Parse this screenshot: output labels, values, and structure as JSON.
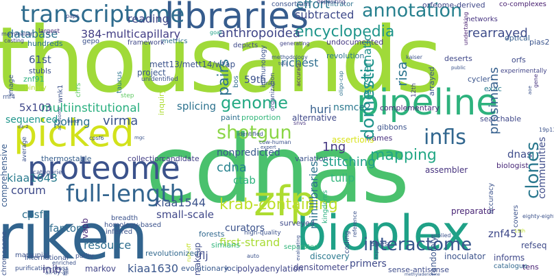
{
  "words": [
    {
      "text": "thousands",
      "color": "#a0da39"
    },
    {
      "text": "cdnas",
      "color": "#4ac16d"
    },
    {
      "text": "riken",
      "color": "#32648e"
    },
    {
      "text": "bioplex",
      "color": "#1fa187"
    },
    {
      "text": "libraries",
      "color": "#365c8d"
    },
    {
      "text": "pipeline",
      "color": "#2db27d"
    },
    {
      "text": "picked",
      "color": "#d2e21b"
    },
    {
      "text": "proteome",
      "color": "#3b528b"
    },
    {
      "text": "zfp",
      "color": "#addc30"
    },
    {
      "text": "transcriptome",
      "color": "#2f6c8e"
    },
    {
      "text": "full-length",
      "color": "#32648e"
    },
    {
      "text": "annotation",
      "color": "#27808e"
    },
    {
      "text": "genome",
      "color": "#23a983"
    },
    {
      "text": "shotgun",
      "color": "#8bd646"
    },
    {
      "text": "domestic",
      "color": "#1f948c"
    },
    {
      "text": "encyclopedia",
      "color": "#1f958b"
    },
    {
      "text": "clones",
      "color": "#2a788e"
    },
    {
      "text": "infls",
      "color": "#31668e"
    },
    {
      "text": "interactome",
      "color": "#39568c"
    },
    {
      "text": "krab-containing",
      "color": "#bddf26"
    },
    {
      "text": "384-multicapillary",
      "color": "#433e85"
    },
    {
      "text": "anthropoidea",
      "color": "#404688"
    },
    {
      "text": "pairs",
      "color": "#2c718e"
    },
    {
      "text": "subtracted",
      "color": "#3e4989"
    },
    {
      "text": "rearrayed",
      "color": "#3e4c8a"
    },
    {
      "text": "effort",
      "color": "#2a768e"
    },
    {
      "text": "database",
      "color": "#2c728e"
    },
    {
      "text": "reading",
      "color": "#3f4788"
    },
    {
      "text": "mapping",
      "color": "#22a785"
    },
    {
      "text": "prosimians",
      "color": "#355f8d"
    },
    {
      "text": "clustered",
      "color": "#1f9e89"
    },
    {
      "text": "stitching",
      "color": "#3dbc74"
    },
    {
      "text": "minilibraries",
      "color": "#2c738e"
    },
    {
      "text": "richest",
      "color": "#2e6e8e"
    },
    {
      "text": "risa",
      "color": "#2b758e"
    },
    {
      "text": "systematic",
      "color": "#21918c"
    },
    {
      "text": "multiinstitutional",
      "color": "#29af7f"
    },
    {
      "text": "5x103",
      "color": "#3f4889"
    },
    {
      "text": "61st",
      "color": "#3a548c"
    },
    {
      "text": "59th",
      "color": "#3b528b"
    },
    {
      "text": "polling",
      "color": "#2c718e"
    },
    {
      "text": "virma",
      "color": "#3a548c"
    },
    {
      "text": "huri",
      "color": "#355f8d"
    },
    {
      "text": "nsmce2",
      "color": "#2a788e"
    },
    {
      "text": "splicing",
      "color": "#2c728e"
    },
    {
      "text": "sequenced",
      "color": "#1f968b"
    },
    {
      "text": "comprehensive",
      "color": "#375a8c"
    },
    {
      "text": "cdna",
      "color": "#26828e"
    },
    {
      "text": "1ng",
      "color": "#453882"
    },
    {
      "text": "ctab",
      "color": "#2db27d"
    },
    {
      "text": "tulip",
      "color": "#31b57b"
    },
    {
      "text": "kiaa1643",
      "color": "#297b8e"
    },
    {
      "text": "kiaa1544",
      "color": "#3b528b"
    },
    {
      "text": "kiaa1630",
      "color": "#39568c"
    },
    {
      "text": "corum",
      "color": "#3e4a89"
    },
    {
      "text": "cpsf5",
      "color": "#2e6f8e"
    },
    {
      "text": "fantom",
      "color": "#2f6c8e"
    },
    {
      "text": "inib",
      "color": "#443983"
    },
    {
      "text": "resource",
      "color": "#2e6e8e"
    },
    {
      "text": "first-strand",
      "color": "#a8db34"
    },
    {
      "text": "small-scale",
      "color": "#3f4788"
    },
    {
      "text": "curators",
      "color": "#3b528b"
    },
    {
      "text": "nonpredicted",
      "color": "#38598c"
    },
    {
      "text": "znf451",
      "color": "#3e4989"
    },
    {
      "text": "dnas",
      "color": "#3e4c8a"
    },
    {
      "text": "communities",
      "color": "#3e4c8a"
    },
    {
      "text": "orfeome-derived",
      "color": "#3f4788"
    },
    {
      "text": "assembler",
      "color": "#46327e"
    },
    {
      "text": "biologist",
      "color": "#482878"
    },
    {
      "text": "preparator",
      "color": "#482475"
    },
    {
      "text": "vapb",
      "color": "#482878"
    },
    {
      "text": "flj",
      "color": "#3e4a89"
    },
    {
      "text": "markov",
      "color": "#414487"
    },
    {
      "text": "makeup",
      "color": "#3e4c8a"
    },
    {
      "text": "evolutionary",
      "color": "#38598c"
    },
    {
      "text": "loci",
      "color": "#3b528b"
    },
    {
      "text": "polyadenylation",
      "color": "#404688"
    },
    {
      "text": "densitometer",
      "color": "#414487"
    },
    {
      "text": "primers",
      "color": "#3e4989"
    },
    {
      "text": "sense-antisense",
      "color": "#3e4c8a"
    },
    {
      "text": "inoculator",
      "color": "#3b528b"
    },
    {
      "text": "informs",
      "color": "#3f4889"
    },
    {
      "text": "refseq",
      "color": "#3e4a89"
    },
    {
      "text": "tens",
      "color": "#482173"
    },
    {
      "text": "catalogue",
      "color": "#31688e"
    },
    {
      "text": "discovery",
      "color": "#2a788e"
    },
    {
      "text": "simians",
      "color": "#31b57b"
    },
    {
      "text": "forests",
      "color": "#31688e"
    },
    {
      "text": "randomly",
      "color": "#3a548c"
    },
    {
      "text": "collection",
      "color": "#433e85"
    },
    {
      "text": "candidate",
      "color": "#424186"
    },
    {
      "text": "thermostable",
      "color": "#355e8d"
    },
    {
      "text": "variation",
      "color": "#3b528b"
    },
    {
      "text": "alternative",
      "color": "#3f4889"
    },
    {
      "text": "proportion",
      "color": "#32b67a"
    },
    {
      "text": "paint",
      "color": "#2d708e"
    },
    {
      "text": "frames",
      "color": "#472e7c"
    },
    {
      "text": "assertions",
      "color": "#d8e219"
    },
    {
      "text": "gibbons",
      "color": "#3b528b"
    },
    {
      "text": "complementary",
      "color": "#482878"
    },
    {
      "text": "searchable",
      "color": "#3f4788"
    },
    {
      "text": "cycler",
      "color": "#3a548c"
    },
    {
      "text": "exac",
      "color": "#287c8e"
    },
    {
      "text": "orfs",
      "color": "#3e4989"
    },
    {
      "text": "pias2",
      "color": "#3a548c"
    },
    {
      "text": "optical",
      "color": "#355f8d"
    },
    {
      "text": "co-complexes",
      "color": "#482071"
    },
    {
      "text": "networks",
      "color": "#463480"
    },
    {
      "text": "deserts",
      "color": "#3f4788"
    },
    {
      "text": "revolution",
      "color": "#2a768e"
    },
    {
      "text": "undocumented",
      "color": "#453882"
    },
    {
      "text": "consortium",
      "color": "#3b528b"
    },
    {
      "text": "filtrator",
      "color": "#2c718e"
    },
    {
      "text": "depositing",
      "color": "#424086"
    },
    {
      "text": "undertaking",
      "color": "#481f70"
    },
    {
      "text": "gene",
      "color": "#46337f"
    },
    {
      "text": "kaiser",
      "color": "#440154"
    },
    {
      "text": "generating",
      "color": "#3b528b"
    },
    {
      "text": "depicts",
      "color": "#414487"
    },
    {
      "text": "goal",
      "color": "#3e4989"
    },
    {
      "text": "metrics",
      "color": "#1fa188"
    },
    {
      "text": "framework",
      "color": "#2d708e"
    },
    {
      "text": "hundreds",
      "color": "#3f4788"
    },
    {
      "text": "largest",
      "color": "#2c718e"
    },
    {
      "text": "paps",
      "color": "#472d7b"
    },
    {
      "text": "mammalian",
      "color": "#3f4889"
    },
    {
      "text": "casting",
      "color": "#3f4889"
    },
    {
      "text": "image",
      "color": "#414487"
    },
    {
      "text": "stubls",
      "color": "#3b528b"
    },
    {
      "text": "znf91",
      "color": "#3b528b"
    },
    {
      "text": "binary",
      "color": "#29af7f"
    },
    {
      "text": "rnf4",
      "color": "#b5de2b"
    },
    {
      "text": "wnk1",
      "color": "#3b528b"
    },
    {
      "text": "mett13/mett14/wtap",
      "color": "#3b528b"
    },
    {
      "text": "project",
      "color": "#5ec962"
    },
    {
      "text": "unidentified",
      "color": "#7ad151"
    },
    {
      "text": "taurus",
      "color": "#3b528b"
    },
    {
      "text": "inquiry",
      "color": "#39568c"
    },
    {
      "text": "step",
      "color": "#3b528b"
    },
    {
      "text": "organization",
      "color": "#2a768e"
    },
    {
      "text": "methodology",
      "color": "#addc30"
    },
    {
      "text": "tsss",
      "color": "#5ec962"
    },
    {
      "text": "immunology",
      "color": "#3e4c8a"
    },
    {
      "text": "bos",
      "color": "#3a548c"
    },
    {
      "text": "units",
      "color": "#3b528b"
    },
    {
      "text": "accurate",
      "color": "#3b528b"
    },
    {
      "text": "12th",
      "color": "#2f6c8e"
    },
    {
      "text": "arrayed",
      "color": "#39558c"
    },
    {
      "text": "chrs",
      "color": "#482475"
    },
    {
      "text": "public",
      "color": "#433e85"
    },
    {
      "text": "experimentally",
      "color": "#3b528b"
    },
    {
      "text": "identified",
      "color": "#3b528b"
    },
    {
      "text": "snvs",
      "color": "#414487"
    },
    {
      "text": "oligo-cap",
      "color": "#3b528b"
    },
    {
      "text": "cow-human",
      "color": "#46327e"
    },
    {
      "text": "expert",
      "color": "#2c718e"
    },
    {
      "text": "surveyed",
      "color": "#3b528b"
    },
    {
      "text": "kingdoms",
      "color": "#3b528b"
    },
    {
      "text": "apes",
      "color": "#3e4a89"
    },
    {
      "text": "high-quality",
      "color": "#29af7f"
    },
    {
      "text": "coding",
      "color": "#3b528b"
    },
    {
      "text": "reference",
      "color": "#3b528b"
    },
    {
      "text": "separated",
      "color": "#3b528b"
    },
    {
      "text": "applied",
      "color": "#3b528b"
    },
    {
      "text": "accuracy",
      "color": "#31b57b"
    },
    {
      "text": "covers",
      "color": "#3b528b"
    },
    {
      "text": "eighty-eight",
      "color": "#3b528b"
    },
    {
      "text": "19p13",
      "color": "#3b528b"
    },
    {
      "text": "13th",
      "color": "#2c718e"
    },
    {
      "text": "run-off",
      "color": "#3b528b"
    },
    {
      "text": "auto",
      "color": "#3b528b"
    },
    {
      "text": "evaluating",
      "color": "#bddf26"
    },
    {
      "text": "explicit",
      "color": "#c2df23"
    },
    {
      "text": "methyladenosine",
      "color": "#3b528b"
    },
    {
      "text": "chromosome",
      "color": "#3b528b"
    },
    {
      "text": "marsupial",
      "color": "#3b528b"
    },
    {
      "text": "international",
      "color": "#3b528b"
    },
    {
      "text": "purification-mass",
      "color": "#3b528b"
    },
    {
      "text": "all-by-all",
      "color": "#3b528b"
    },
    {
      "text": "enriched",
      "color": "#3b528b"
    },
    {
      "text": "h/c",
      "color": "#3b528b"
    },
    {
      "text": "revolutionized",
      "color": "#3b528b"
    },
    {
      "text": "breadth",
      "color": "#3b528b"
    },
    {
      "text": "homology-based",
      "color": "#3b528b"
    },
    {
      "text": "inferred",
      "color": "#31688e"
    },
    {
      "text": "average",
      "color": "#3b528b"
    },
    {
      "text": "categories",
      "color": "#3b528b"
    },
    {
      "text": "cpsf6",
      "color": "#3b528b"
    },
    {
      "text": "mgc",
      "color": "#3b528b"
    },
    {
      "text": "rarer",
      "color": "#3b528b"
    },
    {
      "text": "acrosome",
      "color": "#3b528b"
    },
    {
      "text": "bardl",
      "color": "#3b528b"
    },
    {
      "text": "aoe",
      "color": "#3b528b"
    },
    {
      "text": "da-2",
      "color": "#3b528b"
    },
    {
      "text": "gepo",
      "color": "#3b528b"
    },
    {
      "text": "purity",
      "color": "#3b528b"
    },
    {
      "text": "products",
      "color": "#3b528b"
    },
    {
      "text": "1-d",
      "color": "#3b528b"
    }
  ]
}
